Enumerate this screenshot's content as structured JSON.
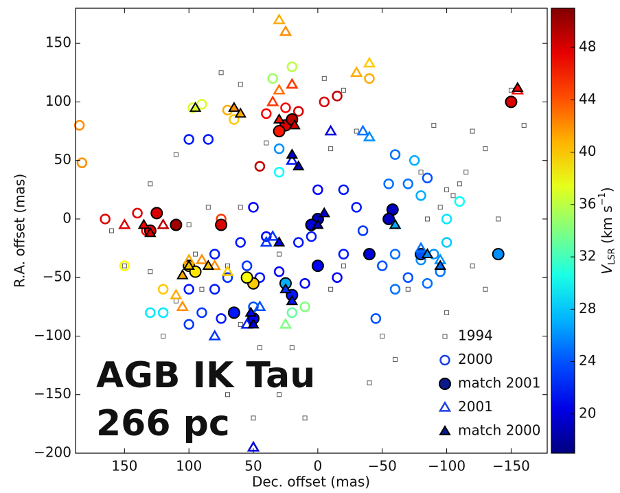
{
  "chart_data": {
    "type": "scatter",
    "xlabel": "Dec. offset (mas)",
    "ylabel": "R.A. offset (mas)",
    "xlim": [
      188,
      -178
    ],
    "ylim": [
      -200,
      180
    ],
    "xticks": [
      150,
      100,
      50,
      0,
      {
        "value": -50,
        "label": "−50"
      },
      {
        "value": -100,
        "label": "−100"
      },
      {
        "value": -150,
        "label": "−150"
      }
    ],
    "yticks": [
      150,
      100,
      50,
      0,
      {
        "value": -50,
        "label": "−50"
      },
      {
        "value": -100,
        "label": "−100"
      },
      {
        "value": -150,
        "label": "−150"
      },
      {
        "value": -200,
        "label": "−200"
      }
    ],
    "colorbar": {
      "clim": [
        17,
        51
      ],
      "ticks": [
        20,
        24,
        28,
        32,
        36,
        40,
        44,
        48
      ],
      "colormap": "jet",
      "label": {
        "symbol": "V",
        "subscript": "LSR",
        "unit": "(km s",
        "exponent": "−1",
        "close": ")"
      }
    },
    "annotations": [
      "AGB IK Tau",
      "266 pc"
    ],
    "series": [
      {
        "name": "1994",
        "marker": "square",
        "filled": false,
        "color": "#555555",
        "x": [
          -85,
          -95,
          -105,
          -110,
          -115,
          -100,
          100,
          85,
          130,
          110,
          60,
          30,
          -20,
          -70,
          -120,
          -130,
          -160,
          -140,
          60,
          20,
          -40,
          70,
          90,
          40,
          -10,
          -30,
          -80,
          -100,
          -130,
          150,
          160,
          95,
          70,
          -20,
          -5,
          30,
          50,
          -50,
          -10,
          -150,
          60,
          75,
          -90,
          -120,
          10,
          -60,
          120,
          110,
          130,
          45
        ],
        "y": [
          0,
          10,
          20,
          30,
          40,
          25,
          -5,
          10,
          30,
          55,
          10,
          -30,
          -40,
          -60,
          -40,
          60,
          80,
          0,
          -90,
          -110,
          -140,
          -150,
          -60,
          65,
          60,
          75,
          40,
          -80,
          -60,
          -40,
          -10,
          -30,
          -40,
          110,
          120,
          -150,
          -170,
          -100,
          -60,
          110,
          115,
          125,
          80,
          75,
          -170,
          -120,
          -100,
          -70,
          -45,
          -110
        ]
      },
      {
        "name": "2000",
        "marker": "circle",
        "filled": false,
        "color": "#1a3fe0",
        "x": [
          133,
          140,
          165,
          185,
          183,
          97,
          90,
          100,
          85,
          70,
          65,
          40,
          25,
          15,
          -15,
          -5,
          45,
          30,
          30,
          35,
          20,
          -40,
          50,
          40,
          0,
          -20,
          -30,
          -35,
          -50,
          -60,
          -70,
          -55,
          -70,
          -80,
          -60,
          -75,
          -100,
          -110,
          -100,
          60,
          70,
          80,
          90,
          100,
          120,
          130,
          150,
          120,
          100,
          30,
          10,
          -15,
          -45,
          -60,
          20,
          10,
          -20,
          45,
          75,
          55,
          80,
          -85,
          -90,
          75,
          5,
          15,
          -85,
          -95,
          -80,
          50
        ],
        "y": [
          -10,
          5,
          0,
          80,
          48,
          95,
          98,
          68,
          68,
          93,
          85,
          90,
          95,
          92,
          105,
          100,
          45,
          40,
          60,
          120,
          130,
          120,
          10,
          -15,
          25,
          25,
          10,
          -10,
          -40,
          -30,
          -50,
          30,
          30,
          20,
          55,
          50,
          0,
          15,
          -20,
          -20,
          -50,
          -60,
          -80,
          -90,
          -80,
          -80,
          -40,
          -60,
          -60,
          -45,
          -55,
          -50,
          -85,
          -60,
          -80,
          -75,
          -30,
          -50,
          -85,
          -40,
          -30,
          -55,
          -30,
          0,
          -15,
          -20,
          35,
          -45,
          -35,
          -75
        ],
        "v": [
          47,
          48,
          48,
          42,
          42,
          37,
          37,
          22,
          22,
          41,
          40,
          47,
          47,
          48,
          49,
          48,
          49,
          30,
          26,
          35,
          36,
          41,
          21,
          21,
          21,
          22,
          22,
          23,
          24,
          25,
          24,
          25,
          25,
          27,
          25,
          27,
          29,
          30,
          28,
          22,
          23,
          22,
          23,
          23,
          29,
          29,
          38,
          40,
          22,
          21,
          21,
          21,
          24,
          25,
          33,
          34,
          22,
          22,
          22,
          23,
          22,
          25,
          26,
          45,
          22,
          22,
          24,
          25,
          26,
          24
        ]
      },
      {
        "name": "match 2001",
        "marker": "circle",
        "filled": true,
        "color": "#0a1a8a",
        "x": [
          130,
          125,
          110,
          25,
          20,
          30,
          -58,
          -55,
          0,
          5,
          75,
          50,
          55,
          25,
          20,
          50,
          -150,
          -140,
          -80,
          100,
          95,
          65,
          0,
          -40
        ],
        "y": [
          -10,
          5,
          -5,
          80,
          85,
          75,
          8,
          0,
          0,
          -5,
          -5,
          -55,
          -50,
          -55,
          -65,
          -85,
          100,
          -30,
          -30,
          -40,
          -45,
          -80,
          -40,
          -30
        ],
        "v": [
          47,
          48,
          50,
          48,
          49,
          46,
          19,
          19,
          19,
          20,
          48,
          40,
          38,
          27,
          22,
          21,
          48,
          26,
          24,
          40,
          39,
          22,
          21,
          20
        ]
      },
      {
        "name": "2001",
        "marker": "triangle",
        "filled": false,
        "color": "#1a3fe0",
        "x": [
          30,
          25,
          -30,
          -40,
          30,
          20,
          35,
          120,
          150,
          100,
          90,
          80,
          70,
          110,
          105,
          -40,
          -35,
          20,
          -10,
          -60,
          -80,
          -95,
          35,
          40,
          80,
          55,
          50,
          -155,
          25,
          45
        ],
        "y": [
          170,
          160,
          125,
          133,
          110,
          115,
          100,
          -5,
          -5,
          -35,
          -35,
          -40,
          -45,
          -65,
          -75,
          70,
          75,
          50,
          75,
          -5,
          -25,
          -35,
          -15,
          -20,
          -100,
          -90,
          -195,
          110,
          -90,
          -75
        ],
        "v": [
          41,
          42,
          41,
          40,
          43,
          45,
          45,
          49,
          48,
          41,
          42,
          42,
          40,
          41,
          42,
          26,
          25,
          22,
          20,
          28,
          25,
          26,
          23,
          23,
          23,
          22,
          20,
          47,
          34,
          24
        ]
      },
      {
        "name": "match 2000",
        "marker": "triangle",
        "filled": true,
        "color": "#0a1a8a",
        "x": [
          135,
          130,
          65,
          60,
          95,
          30,
          18,
          20,
          15,
          0,
          -5,
          -60,
          -85,
          -95,
          100,
          105,
          85,
          50,
          52,
          20,
          25,
          -155,
          30
        ],
        "y": [
          -5,
          -12,
          95,
          90,
          95,
          85,
          80,
          55,
          45,
          -5,
          5,
          -5,
          -30,
          -40,
          -40,
          -48,
          -40,
          -90,
          -80,
          -70,
          -60,
          112,
          -20
        ],
        "v": [
          47,
          48,
          42,
          41,
          37,
          46,
          48,
          20,
          19,
          19,
          20,
          27,
          26,
          25,
          40,
          41,
          40,
          20,
          21,
          22,
          23,
          47,
          21
        ]
      }
    ]
  }
}
